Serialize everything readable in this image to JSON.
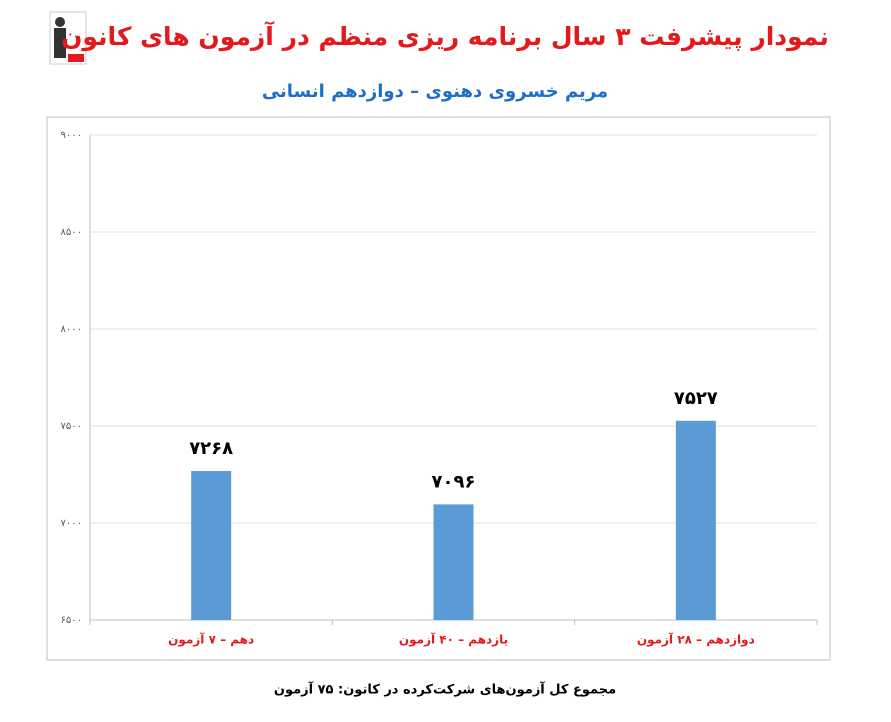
{
  "chart_data": {
    "type": "bar",
    "title": "نمودار پیشرفت ۳ سال برنامه ریزی منظم در آزمون های کانون",
    "subtitle": "مریم خسروی دهنوی – دوازدهم انسانی",
    "categories": [
      "دهم – ۷ آزمون",
      "یازدهم – ۴۰ آزمون",
      "دوازدهم – ۲۸ آزمون"
    ],
    "values": [
      7268,
      7096,
      7527
    ],
    "value_labels": [
      "۷۲۶۸",
      "۷۰۹۶",
      "۷۵۲۷"
    ],
    "color": "#5b9bd5",
    "ylim": [
      6500,
      9000
    ],
    "yticks": [
      {
        "value": 6500,
        "label": "۶۵۰۰"
      },
      {
        "value": 7000,
        "label": "۷۰۰۰"
      },
      {
        "value": 7500,
        "label": "۷۵۰۰"
      },
      {
        "value": 8000,
        "label": "۸۰۰۰"
      },
      {
        "value": 8500,
        "label": "۸۵۰۰"
      },
      {
        "value": 9000,
        "label": "۹۰۰۰"
      }
    ],
    "grid": true,
    "footer": "مجموع کل آزمون‌های شرکت‌کرده در کانون: ۷۵ آزمون"
  }
}
